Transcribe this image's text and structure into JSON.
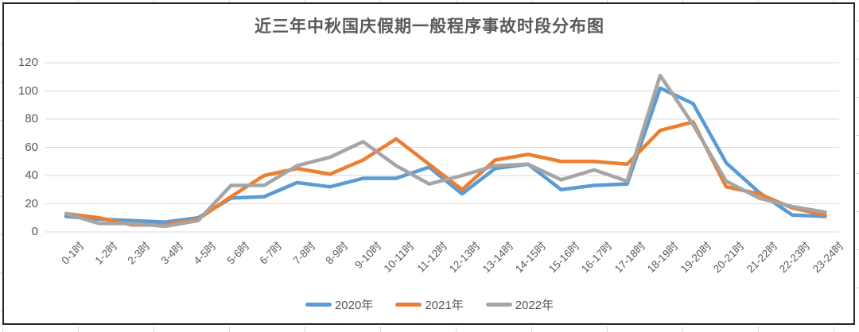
{
  "chart_data": {
    "type": "line",
    "title": "近三年中秋国庆假期一般程序事故时段分布图",
    "categories": [
      "0-1时",
      "1-2时",
      "2-3时",
      "3-4时",
      "4-5时",
      "5-6时",
      "6-7时",
      "7-8时",
      "8-9时",
      "9-10时",
      "10-11时",
      "11-12时",
      "12-13时",
      "13-14时",
      "14-15时",
      "15-16时",
      "16-17时",
      "17-18时",
      "18-19时",
      "19-20时",
      "20-21时",
      "21-22时",
      "22-23时",
      "23-24时"
    ],
    "series": [
      {
        "name": "2020年",
        "color": "#5B9BD5",
        "values": [
          11,
          9,
          8,
          7,
          10,
          24,
          25,
          35,
          32,
          38,
          38,
          46,
          27,
          45,
          48,
          30,
          33,
          34,
          102,
          91,
          49,
          28,
          12,
          11
        ]
      },
      {
        "name": "2021年",
        "color": "#ED7D31",
        "values": [
          13,
          10,
          5,
          5,
          9,
          25,
          40,
          45,
          41,
          51,
          66,
          48,
          30,
          51,
          55,
          50,
          50,
          48,
          72,
          78,
          32,
          27,
          17,
          12
        ]
      },
      {
        "name": "2022年",
        "color": "#A5A5A5",
        "values": [
          13,
          6,
          6,
          4,
          8,
          33,
          33,
          47,
          53,
          64,
          47,
          34,
          40,
          47,
          48,
          37,
          44,
          36,
          111,
          76,
          36,
          24,
          18,
          14
        ]
      }
    ],
    "ylim": [
      0,
      120
    ],
    "yticks": [
      "0",
      "20",
      "40",
      "60",
      "80",
      "100",
      "120"
    ],
    "grid": "horizontal",
    "legend_position": "bottom",
    "x_label_rotation_deg": -45
  },
  "colors": {
    "grid": "#D9D9D9",
    "axis_text": "#595959",
    "title_text": "#595959",
    "frame_border": "#262626",
    "worksheet_stub": "#D9D9D9"
  }
}
